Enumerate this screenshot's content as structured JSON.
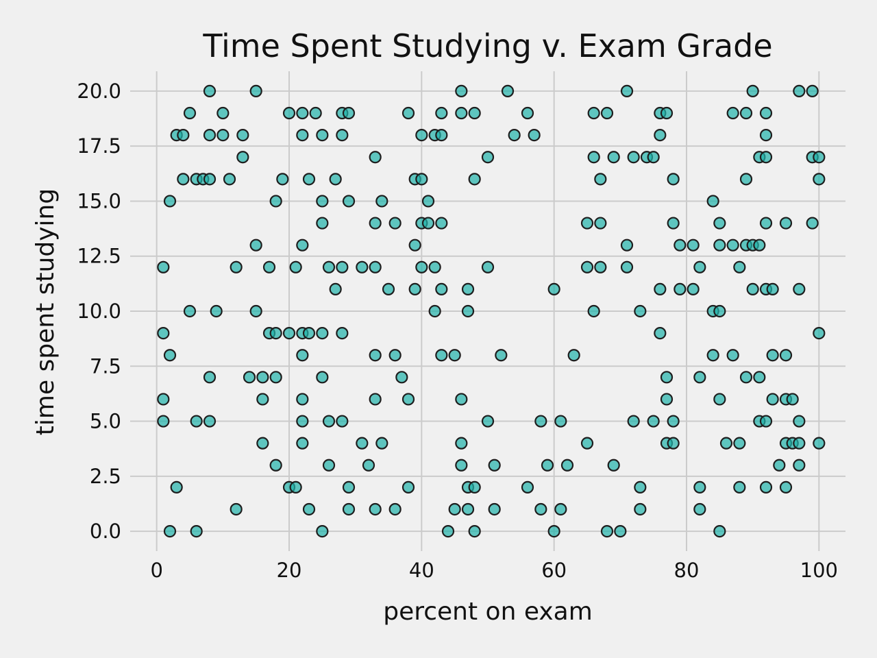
{
  "chart_data": {
    "type": "scatter",
    "title": "Time Spent Studying v. Exam Grade",
    "xlabel": "percent on exam",
    "ylabel": "time spent studying",
    "xlim": [
      -4,
      104
    ],
    "ylim": [
      -0.9,
      20.9
    ],
    "xticks": [
      0,
      20,
      40,
      60,
      80,
      100
    ],
    "xtick_labels": [
      "0",
      "20",
      "40",
      "60",
      "80",
      "100"
    ],
    "yticks": [
      0,
      2.5,
      5,
      7.5,
      10,
      12.5,
      15,
      17.5,
      20
    ],
    "ytick_labels": [
      "0.0",
      "2.5",
      "5.0",
      "7.5",
      "10.0",
      "12.5",
      "15.0",
      "17.5",
      "20.0"
    ],
    "grid": true,
    "marker_color": "#20b2aa",
    "marker_edge": "#1e1e1e",
    "background": "#f0f0f0",
    "points": [
      [
        8,
        20
      ],
      [
        15,
        20
      ],
      [
        46,
        20
      ],
      [
        53,
        20
      ],
      [
        71,
        20
      ],
      [
        90,
        20
      ],
      [
        97,
        20
      ],
      [
        99,
        20
      ],
      [
        5,
        19
      ],
      [
        10,
        19
      ],
      [
        20,
        19
      ],
      [
        22,
        19
      ],
      [
        24,
        19
      ],
      [
        28,
        19
      ],
      [
        29,
        19
      ],
      [
        38,
        19
      ],
      [
        43,
        19
      ],
      [
        46,
        19
      ],
      [
        48,
        19
      ],
      [
        56,
        19
      ],
      [
        66,
        19
      ],
      [
        68,
        19
      ],
      [
        76,
        19
      ],
      [
        77,
        19
      ],
      [
        87,
        19
      ],
      [
        89,
        19
      ],
      [
        92,
        19
      ],
      [
        3,
        18
      ],
      [
        4,
        18
      ],
      [
        8,
        18
      ],
      [
        10,
        18
      ],
      [
        13,
        18
      ],
      [
        22,
        18
      ],
      [
        25,
        18
      ],
      [
        28,
        18
      ],
      [
        40,
        18
      ],
      [
        42,
        18
      ],
      [
        43,
        18
      ],
      [
        54,
        18
      ],
      [
        57,
        18
      ],
      [
        76,
        18
      ],
      [
        92,
        18
      ],
      [
        13,
        17
      ],
      [
        33,
        17
      ],
      [
        50,
        17
      ],
      [
        66,
        17
      ],
      [
        69,
        17
      ],
      [
        72,
        17
      ],
      [
        74,
        17
      ],
      [
        75,
        17
      ],
      [
        91,
        17
      ],
      [
        92,
        17
      ],
      [
        99,
        17
      ],
      [
        100,
        17
      ],
      [
        4,
        16
      ],
      [
        6,
        16
      ],
      [
        7,
        16
      ],
      [
        8,
        16
      ],
      [
        11,
        16
      ],
      [
        19,
        16
      ],
      [
        23,
        16
      ],
      [
        27,
        16
      ],
      [
        39,
        16
      ],
      [
        40,
        16
      ],
      [
        48,
        16
      ],
      [
        67,
        16
      ],
      [
        78,
        16
      ],
      [
        89,
        16
      ],
      [
        100,
        16
      ],
      [
        2,
        15
      ],
      [
        18,
        15
      ],
      [
        25,
        15
      ],
      [
        29,
        15
      ],
      [
        34,
        15
      ],
      [
        41,
        15
      ],
      [
        84,
        15
      ],
      [
        25,
        14
      ],
      [
        33,
        14
      ],
      [
        36,
        14
      ],
      [
        40,
        14
      ],
      [
        41,
        14
      ],
      [
        43,
        14
      ],
      [
        65,
        14
      ],
      [
        67,
        14
      ],
      [
        78,
        14
      ],
      [
        85,
        14
      ],
      [
        92,
        14
      ],
      [
        95,
        14
      ],
      [
        99,
        14
      ],
      [
        15,
        13
      ],
      [
        22,
        13
      ],
      [
        39,
        13
      ],
      [
        71,
        13
      ],
      [
        79,
        13
      ],
      [
        81,
        13
      ],
      [
        85,
        13
      ],
      [
        87,
        13
      ],
      [
        89,
        13
      ],
      [
        90,
        13
      ],
      [
        91,
        13
      ],
      [
        1,
        12
      ],
      [
        12,
        12
      ],
      [
        17,
        12
      ],
      [
        21,
        12
      ],
      [
        26,
        12
      ],
      [
        28,
        12
      ],
      [
        31,
        12
      ],
      [
        33,
        12
      ],
      [
        40,
        12
      ],
      [
        42,
        12
      ],
      [
        50,
        12
      ],
      [
        65,
        12
      ],
      [
        67,
        12
      ],
      [
        71,
        12
      ],
      [
        82,
        12
      ],
      [
        88,
        12
      ],
      [
        27,
        11
      ],
      [
        35,
        11
      ],
      [
        39,
        11
      ],
      [
        43,
        11
      ],
      [
        47,
        11
      ],
      [
        60,
        11
      ],
      [
        76,
        11
      ],
      [
        79,
        11
      ],
      [
        81,
        11
      ],
      [
        90,
        11
      ],
      [
        92,
        11
      ],
      [
        93,
        11
      ],
      [
        97,
        11
      ],
      [
        5,
        10
      ],
      [
        9,
        10
      ],
      [
        15,
        10
      ],
      [
        42,
        10
      ],
      [
        47,
        10
      ],
      [
        66,
        10
      ],
      [
        73,
        10
      ],
      [
        84,
        10
      ],
      [
        85,
        10
      ],
      [
        1,
        9
      ],
      [
        17,
        9
      ],
      [
        18,
        9
      ],
      [
        20,
        9
      ],
      [
        22,
        9
      ],
      [
        23,
        9
      ],
      [
        25,
        9
      ],
      [
        28,
        9
      ],
      [
        76,
        9
      ],
      [
        100,
        9
      ],
      [
        2,
        8
      ],
      [
        22,
        8
      ],
      [
        33,
        8
      ],
      [
        36,
        8
      ],
      [
        43,
        8
      ],
      [
        45,
        8
      ],
      [
        52,
        8
      ],
      [
        63,
        8
      ],
      [
        84,
        8
      ],
      [
        87,
        8
      ],
      [
        93,
        8
      ],
      [
        95,
        8
      ],
      [
        8,
        7
      ],
      [
        14,
        7
      ],
      [
        16,
        7
      ],
      [
        18,
        7
      ],
      [
        25,
        7
      ],
      [
        37,
        7
      ],
      [
        77,
        7
      ],
      [
        82,
        7
      ],
      [
        89,
        7
      ],
      [
        91,
        7
      ],
      [
        1,
        6
      ],
      [
        16,
        6
      ],
      [
        22,
        6
      ],
      [
        33,
        6
      ],
      [
        38,
        6
      ],
      [
        46,
        6
      ],
      [
        77,
        6
      ],
      [
        85,
        6
      ],
      [
        93,
        6
      ],
      [
        95,
        6
      ],
      [
        96,
        6
      ],
      [
        1,
        5
      ],
      [
        6,
        5
      ],
      [
        8,
        5
      ],
      [
        22,
        5
      ],
      [
        26,
        5
      ],
      [
        28,
        5
      ],
      [
        50,
        5
      ],
      [
        58,
        5
      ],
      [
        61,
        5
      ],
      [
        72,
        5
      ],
      [
        75,
        5
      ],
      [
        78,
        5
      ],
      [
        91,
        5
      ],
      [
        92,
        5
      ],
      [
        97,
        5
      ],
      [
        16,
        4
      ],
      [
        22,
        4
      ],
      [
        31,
        4
      ],
      [
        34,
        4
      ],
      [
        46,
        4
      ],
      [
        65,
        4
      ],
      [
        77,
        4
      ],
      [
        78,
        4
      ],
      [
        86,
        4
      ],
      [
        88,
        4
      ],
      [
        95,
        4
      ],
      [
        96,
        4
      ],
      [
        97,
        4
      ],
      [
        100,
        4
      ],
      [
        18,
        3
      ],
      [
        26,
        3
      ],
      [
        32,
        3
      ],
      [
        46,
        3
      ],
      [
        51,
        3
      ],
      [
        59,
        3
      ],
      [
        62,
        3
      ],
      [
        69,
        3
      ],
      [
        94,
        3
      ],
      [
        97,
        3
      ],
      [
        3,
        2
      ],
      [
        20,
        2
      ],
      [
        21,
        2
      ],
      [
        29,
        2
      ],
      [
        38,
        2
      ],
      [
        47,
        2
      ],
      [
        48,
        2
      ],
      [
        56,
        2
      ],
      [
        73,
        2
      ],
      [
        82,
        2
      ],
      [
        88,
        2
      ],
      [
        92,
        2
      ],
      [
        95,
        2
      ],
      [
        12,
        1
      ],
      [
        23,
        1
      ],
      [
        29,
        1
      ],
      [
        33,
        1
      ],
      [
        36,
        1
      ],
      [
        45,
        1
      ],
      [
        47,
        1
      ],
      [
        51,
        1
      ],
      [
        58,
        1
      ],
      [
        61,
        1
      ],
      [
        73,
        1
      ],
      [
        82,
        1
      ],
      [
        2,
        0
      ],
      [
        6,
        0
      ],
      [
        25,
        0
      ],
      [
        44,
        0
      ],
      [
        48,
        0
      ],
      [
        60,
        0
      ],
      [
        68,
        0
      ],
      [
        70,
        0
      ],
      [
        85,
        0
      ]
    ]
  }
}
